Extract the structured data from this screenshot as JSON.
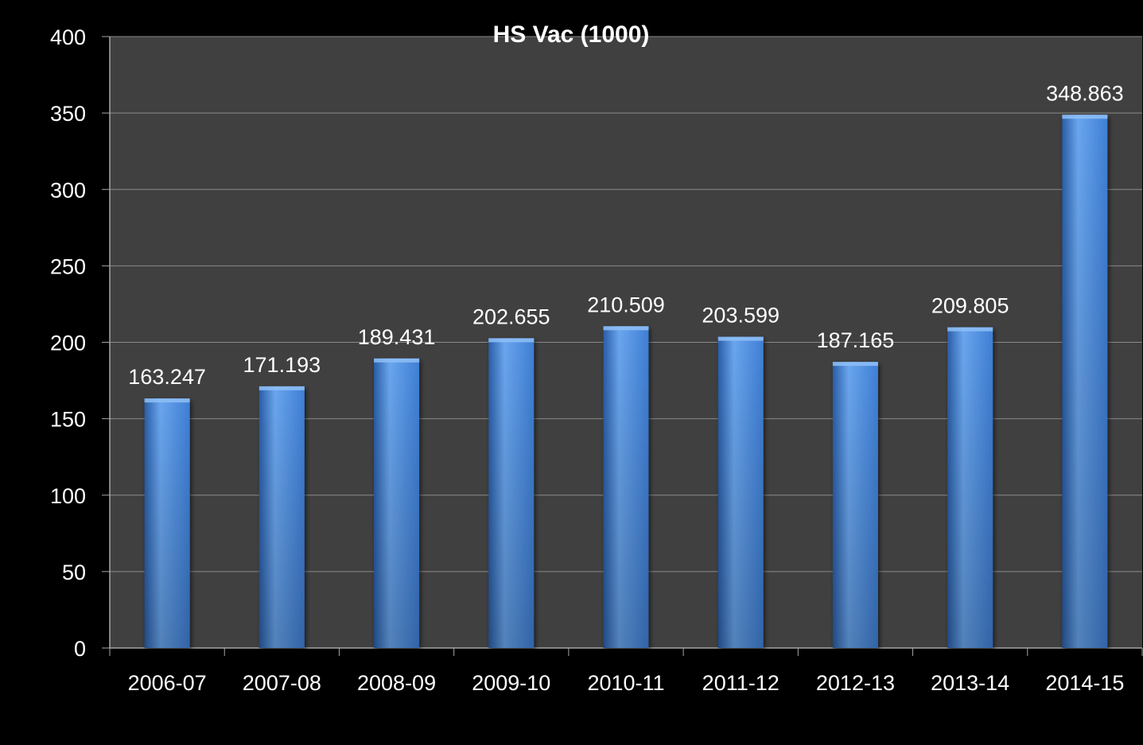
{
  "chart_data": {
    "type": "bar",
    "title": "HS Vac (1000)",
    "xlabel": "",
    "ylabel": "",
    "categories": [
      "2006-07",
      "2007-08",
      "2008-09",
      "2009-10",
      "2010-11",
      "2011-12",
      "2012-13",
      "2013-14",
      "2014-15"
    ],
    "values": [
      163.247,
      171.193,
      189.431,
      202.655,
      210.509,
      203.599,
      187.165,
      209.805,
      348.863
    ],
    "data_labels": [
      "163.247",
      "171.193",
      "189.431",
      "202.655",
      "210.509",
      "203.599",
      "187.165",
      "209.805",
      "348.863"
    ],
    "ylim": [
      0,
      400
    ],
    "y_ticks": [
      "0",
      "50",
      "100",
      "150",
      "200",
      "250",
      "300",
      "350",
      "400"
    ],
    "grid": true,
    "legend": "none",
    "colors": {
      "page_background": "#000000",
      "plot_background": "#404040",
      "bar": "#3f7fd6",
      "bar_highlight": "#6aa6ee",
      "bar_shadow": "#2a5ea8",
      "gridline": "#8a8a8a",
      "axis": "#a6a6a6",
      "text": "#ffffff"
    }
  }
}
